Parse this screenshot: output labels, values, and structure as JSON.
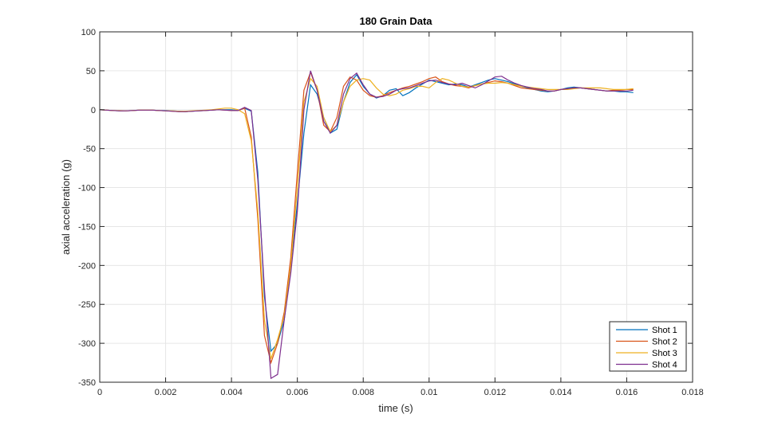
{
  "chart_data": {
    "type": "line",
    "title": "180 Grain Data",
    "xlabel": "time (s)",
    "ylabel": "axial acceleration (g)",
    "xlim": [
      0,
      0.018
    ],
    "ylim": [
      -350,
      100
    ],
    "xticks": [
      0,
      0.002,
      0.004,
      0.006,
      0.008,
      0.01,
      0.012,
      0.014,
      0.016,
      0.018
    ],
    "xtick_labels": [
      "0",
      "0.002",
      "0.004",
      "0.006",
      "0.008",
      "0.01",
      "0.012",
      "0.014",
      "0.016",
      "0.018"
    ],
    "yticks": [
      100,
      50,
      0,
      -50,
      -100,
      -150,
      -200,
      -250,
      -300,
      -350
    ],
    "ytick_labels": [
      "100",
      "50",
      "0",
      "-50",
      "-100",
      "-150",
      "-200",
      "-250",
      "-300",
      "-350"
    ],
    "grid": true,
    "legend_position": "southeast",
    "x": [
      0,
      0.0002,
      0.0004,
      0.0006,
      0.0008,
      0.001,
      0.0012,
      0.0014,
      0.0016,
      0.0018,
      0.002,
      0.0022,
      0.0024,
      0.0026,
      0.0028,
      0.003,
      0.0032,
      0.0034,
      0.0036,
      0.0038,
      0.004,
      0.0042,
      0.0044,
      0.0046,
      0.0048,
      0.005,
      0.0052,
      0.0054,
      0.0056,
      0.0058,
      0.006,
      0.0062,
      0.0064,
      0.0066,
      0.0068,
      0.007,
      0.0072,
      0.0074,
      0.0076,
      0.0078,
      0.008,
      0.0082,
      0.0084,
      0.0086,
      0.0088,
      0.009,
      0.0092,
      0.0094,
      0.0096,
      0.0098,
      0.01,
      0.0102,
      0.0104,
      0.0106,
      0.0108,
      0.011,
      0.0112,
      0.0114,
      0.0116,
      0.0118,
      0.012,
      0.0122,
      0.0124,
      0.0126,
      0.0128,
      0.013,
      0.0132,
      0.0134,
      0.0136,
      0.0138,
      0.014,
      0.0142,
      0.0144,
      0.0146,
      0.0148,
      0.015,
      0.0152,
      0.0154,
      0.0156,
      0.0158,
      0.016,
      0.0162
    ],
    "series": [
      {
        "name": "Shot 1",
        "color": "#0072BD",
        "values": [
          0,
          -0.5,
          -1,
          -1.5,
          -1.5,
          -1,
          -0.5,
          -0.5,
          -0.5,
          -1,
          -1,
          -1.5,
          -2,
          -2.5,
          -2,
          -1.5,
          -1,
          -0.5,
          0,
          0,
          0,
          -1,
          2,
          -2,
          -80,
          -240,
          -310,
          -300,
          -270,
          -200,
          -120,
          -30,
          32,
          20,
          -10,
          -30,
          -25,
          10,
          35,
          45,
          30,
          20,
          15,
          18,
          25,
          27,
          18,
          22,
          28,
          33,
          38,
          36,
          34,
          32,
          33,
          32,
          29,
          32,
          35,
          38,
          40,
          38,
          36,
          33,
          30,
          28,
          26,
          24,
          23,
          24,
          26,
          28,
          29,
          28,
          27,
          26,
          25,
          24,
          24,
          23,
          23,
          22
        ]
      },
      {
        "name": "Shot 2",
        "color": "#D95319",
        "values": [
          0,
          -0.5,
          -1,
          -1.5,
          -1.5,
          -1,
          -0.5,
          -0.5,
          -0.5,
          -1,
          -1.5,
          -2,
          -2.5,
          -2.5,
          -2,
          -1.5,
          -1,
          -0.5,
          0,
          -0.5,
          -1,
          -1,
          2,
          -35,
          -140,
          -290,
          -325,
          -300,
          -260,
          -190,
          -80,
          25,
          48,
          25,
          -20,
          -28,
          -10,
          30,
          42,
          38,
          25,
          18,
          16,
          18,
          22,
          25,
          28,
          30,
          33,
          36,
          40,
          42,
          36,
          33,
          31,
          30,
          28,
          31,
          33,
          35,
          37,
          36,
          34,
          31,
          28,
          27,
          26,
          25,
          24,
          24,
          26,
          27,
          28,
          28,
          27,
          26,
          25,
          24,
          25,
          25,
          26,
          26
        ]
      },
      {
        "name": "Shot 3",
        "color": "#EDB120",
        "values": [
          0,
          -0.5,
          -1,
          -1,
          -1.5,
          -1,
          -0.5,
          -0.5,
          -0.5,
          -1,
          -1.5,
          -1.5,
          -2,
          -2,
          -1.5,
          -1,
          -0.5,
          0,
          1,
          2,
          2,
          0,
          -5,
          -40,
          -130,
          -270,
          -320,
          -295,
          -265,
          -200,
          -100,
          10,
          40,
          30,
          -10,
          -28,
          -20,
          10,
          30,
          38,
          40,
          38,
          28,
          20,
          18,
          20,
          25,
          27,
          30,
          30,
          28,
          35,
          40,
          38,
          34,
          30,
          29,
          31,
          33,
          34,
          34,
          35,
          34,
          32,
          30,
          29,
          28,
          27,
          26,
          26,
          26,
          26,
          27,
          28,
          28,
          28,
          28,
          27,
          26,
          26,
          26,
          27
        ]
      },
      {
        "name": "Shot 4",
        "color": "#7E2F8E",
        "values": [
          0,
          -0.5,
          -1,
          -1.5,
          -1.5,
          -1,
          -0.5,
          -0.5,
          -0.5,
          -1,
          -1.5,
          -2,
          -2.5,
          -2.5,
          -2,
          -1.5,
          -1,
          -0.5,
          0,
          -0.5,
          -1,
          -1,
          3,
          -1,
          -90,
          -230,
          -345,
          -340,
          -270,
          -210,
          -130,
          0,
          50,
          25,
          -15,
          -30,
          -20,
          20,
          40,
          47,
          32,
          20,
          16,
          17,
          20,
          25,
          27,
          28,
          31,
          34,
          37,
          38,
          35,
          33,
          32,
          34,
          31,
          28,
          32,
          37,
          42,
          43,
          38,
          34,
          31,
          29,
          27,
          26,
          24,
          24,
          26,
          27,
          28,
          28,
          27,
          26,
          25,
          24,
          24,
          24,
          24,
          25
        ]
      }
    ]
  }
}
